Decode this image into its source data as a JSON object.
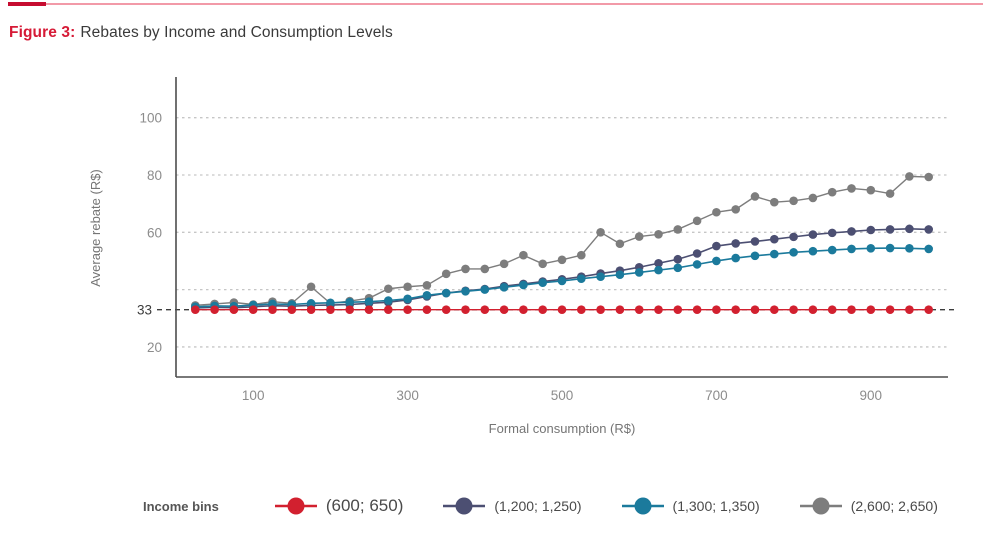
{
  "header": {
    "figure_label": "Figure 3:",
    "caption": "Rebates by Income and Consumption Levels"
  },
  "legend": {
    "title": "Income bins"
  },
  "accent_colors": {
    "rule_thick": "#c60c30",
    "rule_thin": "#f29aa8",
    "figure_label_red": "#d61a36"
  },
  "chart_data": {
    "type": "line",
    "title": "",
    "xlabel": "Formal consumption  (R$)",
    "ylabel": "Average rebate (R$)",
    "x_ticks": [
      100,
      300,
      500,
      700,
      900
    ],
    "y_ticks": [
      100,
      80,
      60,
      20
    ],
    "grid_values": [
      20,
      40,
      60,
      80,
      100
    ],
    "reference_line": {
      "value": 33,
      "label": "33"
    },
    "xlim": [
      0,
      1000
    ],
    "ylim": [
      9.5,
      113.5
    ],
    "grid": "horizontal-dashed",
    "legend_position": "bottom",
    "x": [
      25,
      50,
      75,
      100,
      125,
      150,
      175,
      200,
      225,
      250,
      275,
      300,
      325,
      350,
      375,
      400,
      425,
      450,
      475,
      500,
      525,
      550,
      575,
      600,
      625,
      650,
      675,
      700,
      725,
      750,
      775,
      800,
      825,
      850,
      875,
      900,
      925,
      950,
      975
    ],
    "series": [
      {
        "name": "(600; 650)",
        "color": "#d2202f",
        "line_width": 1.4,
        "values": [
          33,
          33,
          33,
          33,
          33,
          33,
          33,
          33,
          33,
          33,
          33,
          33,
          33,
          33,
          33,
          33,
          33,
          33,
          33,
          33,
          33,
          33,
          33,
          33,
          33,
          33,
          33,
          33,
          33,
          33,
          33,
          33,
          33,
          33,
          33,
          33,
          33,
          33,
          33
        ]
      },
      {
        "name": "(1,200; 1,250)",
        "color": "#4c4f72",
        "line_width": 1.6,
        "values": [
          33.6,
          33.8,
          33.7,
          34.0,
          34.4,
          34.2,
          34.5,
          34.6,
          34.8,
          35.2,
          35.6,
          36.4,
          37.6,
          38.8,
          39.6,
          40.2,
          41.2,
          42.0,
          42.8,
          43.6,
          44.5,
          45.6,
          46.6,
          47.8,
          49.2,
          50.6,
          52.6,
          55.2,
          56.1,
          56.8,
          57.6,
          58.4,
          59.2,
          59.8,
          60.3,
          60.8,
          61.0,
          61.2,
          61.0
        ]
      },
      {
        "name": "(1,300; 1,350)",
        "color": "#1b7a9c",
        "line_width": 1.6,
        "values": [
          34.0,
          34.3,
          34.2,
          34.6,
          35.0,
          34.8,
          35.2,
          35.4,
          35.6,
          35.8,
          36.2,
          36.8,
          38.0,
          38.8,
          39.4,
          40.0,
          40.8,
          41.6,
          42.4,
          43.0,
          43.8,
          44.5,
          45.2,
          46.0,
          46.8,
          47.6,
          48.8,
          50.0,
          51.0,
          51.8,
          52.4,
          53.0,
          53.4,
          53.8,
          54.2,
          54.4,
          54.5,
          54.4,
          54.2
        ]
      },
      {
        "name": "(2,600; 2,650)",
        "color": "#7d7d7d",
        "line_width": 1.4,
        "values": [
          34.5,
          35.0,
          35.5,
          34.8,
          35.8,
          35.2,
          41.0,
          35.2,
          36.0,
          37.0,
          40.3,
          41.0,
          41.5,
          45.5,
          47.2,
          47.2,
          49.0,
          52.0,
          49.0,
          50.4,
          52.0,
          60.0,
          56.0,
          58.5,
          59.3,
          61.0,
          64.0,
          67.0,
          68.0,
          72.5,
          70.5,
          71.0,
          72.0,
          74.0,
          75.3,
          74.7,
          73.5,
          79.5,
          79.3
        ]
      }
    ],
    "style": {
      "grid_color": "#c6c6c6",
      "spine_color": "#4d4d4d",
      "tick_label_color": "#8c8c8c",
      "axis_title_color": "#757575",
      "ref_line_color": "#3c3c3c",
      "marker_radius": 4.3
    }
  }
}
